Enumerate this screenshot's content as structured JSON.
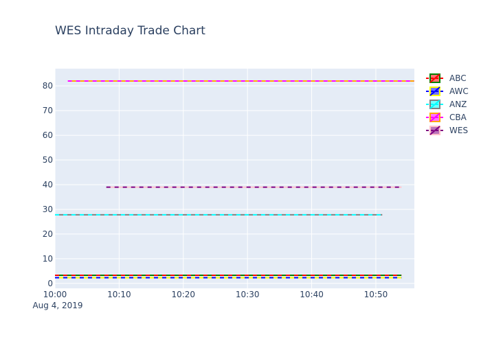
{
  "chart_data": {
    "type": "line",
    "title": "WES Intraday Trade Chart",
    "x_date_label": "Aug 4, 2019",
    "x_ticks": [
      "10:00",
      "10:10",
      "10:20",
      "10:30",
      "10:40",
      "10:50"
    ],
    "x_range": [
      "10:00",
      "10:56"
    ],
    "y_ticks": [
      0,
      10,
      20,
      30,
      40,
      50,
      60,
      70,
      80
    ],
    "ylim": [
      -2,
      87
    ],
    "grid": true,
    "legend_position": "right",
    "series": [
      {
        "name": "ABC",
        "line_color": "#ff0000",
        "gap_color": "#008000",
        "y": 3.3,
        "start": "10:00",
        "end": "10:54"
      },
      {
        "name": "AWC",
        "line_color": "#0000ff",
        "gap_color": "#ffff00",
        "y": 2.3,
        "start": "10:00",
        "end": "10:54"
      },
      {
        "name": "ANZ",
        "line_color": "#00ffff",
        "gap_color": "#808080",
        "y": 27.8,
        "start": "10:00",
        "end": "10:51"
      },
      {
        "name": "CBA",
        "line_color": "#ff00ff",
        "gap_color": "#ffa500",
        "y": 82.0,
        "start": "10:02",
        "end": "10:56"
      },
      {
        "name": "WES",
        "line_color": "#800080",
        "gap_color": "#ffc0cb",
        "y": 39.0,
        "start": "10:08",
        "end": "10:54"
      }
    ]
  }
}
